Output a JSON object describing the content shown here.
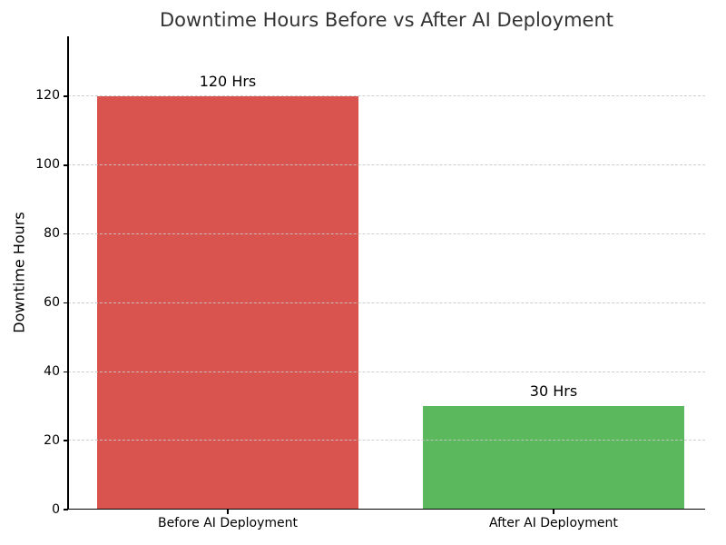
{
  "chart_data": {
    "type": "bar",
    "title": "Downtime Hours Before vs After AI Deployment",
    "xlabel": "",
    "ylabel": "Downtime Hours",
    "categories": [
      "Before AI Deployment",
      "After AI Deployment"
    ],
    "values": [
      120,
      30
    ],
    "bar_labels": [
      "120 Hrs",
      "30 Hrs"
    ],
    "bar_colors": [
      "#d9534f",
      "#5cb85c"
    ],
    "yticks": [
      0,
      20,
      40,
      60,
      80,
      100,
      120
    ],
    "ylim": [
      0,
      137.4
    ],
    "grid": {
      "axis": "y",
      "style": "dashed",
      "color": "#cccccc",
      "drawn_above_bars": true
    },
    "legend": "none",
    "title_color": "#333333",
    "text_color": "#000000",
    "background_color": "#ffffff"
  }
}
